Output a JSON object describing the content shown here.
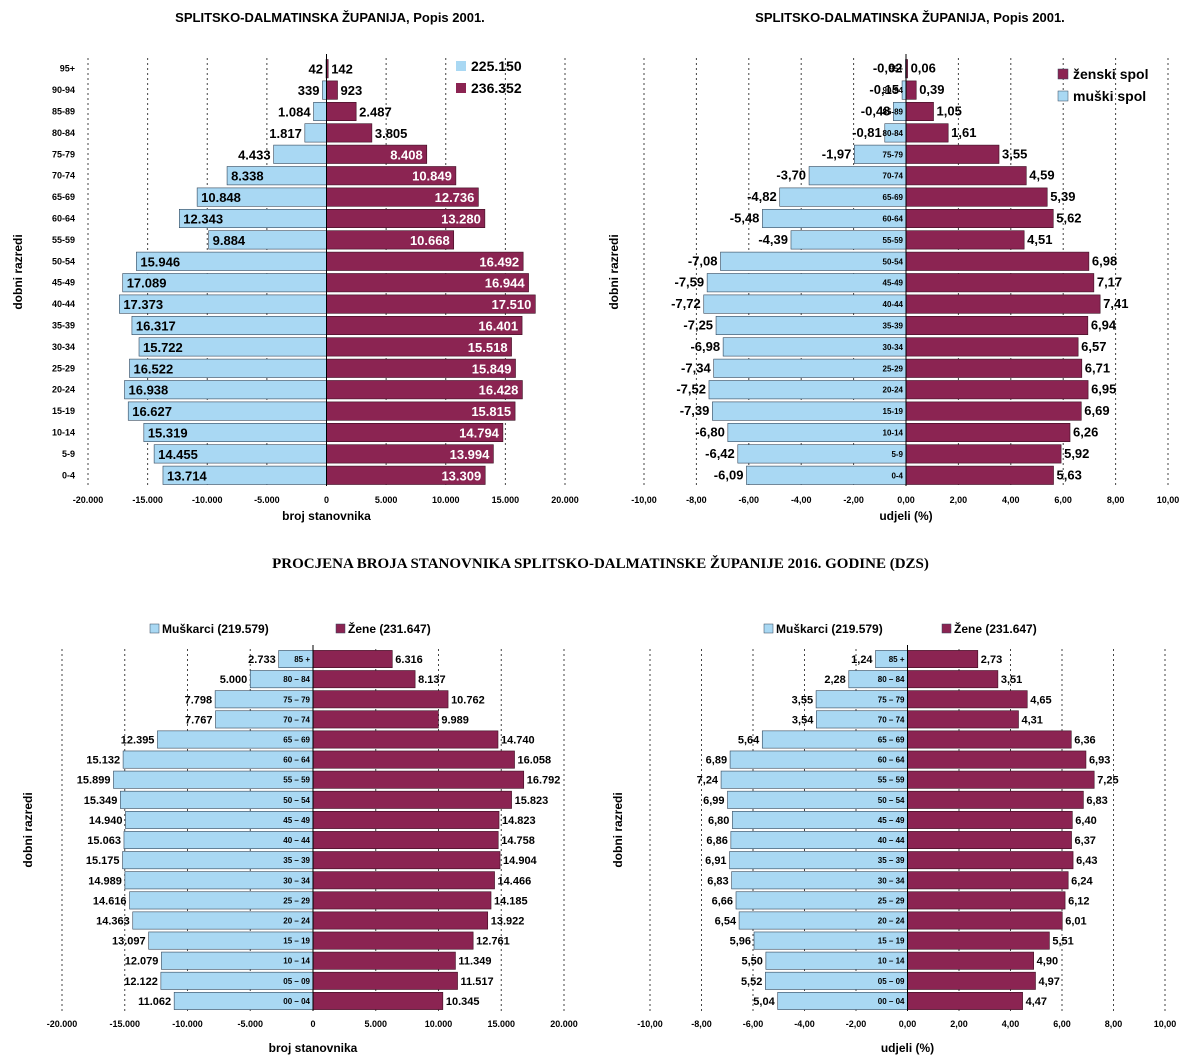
{
  "section_title": "PROCJENA BROJA STANOVNIKA SPLITSKO-DALMATINSKE ŽUPANIJE  2016. GODINE (DZS)",
  "colors": {
    "male": "#a9d8f3",
    "female": "#8b2452"
  },
  "chart_data": [
    {
      "type": "bar",
      "orientation": "horizontal",
      "title": "SPLITSKO-DALMATINSKA ŽUPANIJA, Popis 2001.",
      "xlabel": "broj stanovnika",
      "ylabel": "dobni razredi",
      "xlim": [
        -20000,
        20000
      ],
      "x_ticks": [
        "-20.000",
        "-15.000",
        "-10.000",
        "-5.000",
        "0",
        "5.000",
        "10.000",
        "15.000",
        "20.000"
      ],
      "x_tick_values": [
        -20000,
        -15000,
        -10000,
        -5000,
        0,
        5000,
        10000,
        15000,
        20000
      ],
      "legend": {
        "position": "top-right",
        "entries": [
          "225.150",
          "236.352"
        ]
      },
      "grid": true,
      "categories": [
        "95+",
        "90-94",
        "85-89",
        "80-84",
        "75-79",
        "70-74",
        "65-69",
        "60-64",
        "55-59",
        "50-54",
        "45-49",
        "40-44",
        "35-39",
        "30-34",
        "25-29",
        "20-24",
        "15-19",
        "10-14",
        "5-9",
        "0-4"
      ],
      "series": [
        {
          "values": [
            -42,
            -339,
            -1084,
            -1817,
            -4433,
            -8338,
            -10848,
            -12343,
            -9884,
            -15946,
            -17089,
            -17373,
            -16317,
            -15722,
            -16522,
            -16938,
            -16627,
            -15319,
            -14455,
            -13714
          ],
          "labels": [
            "42",
            "339",
            "1.084",
            "1.817",
            "4.433",
            "8.338",
            "10.848",
            "12.343",
            "9.884",
            "15.946",
            "17.089",
            "17.373",
            "16.317",
            "15.722",
            "16.522",
            "16.938",
            "16.627",
            "15.319",
            "14.455",
            "13.714"
          ]
        },
        {
          "values": [
            142,
            923,
            2487,
            3805,
            8408,
            10849,
            12736,
            13280,
            10668,
            16492,
            16944,
            17510,
            16401,
            15518,
            15849,
            16428,
            15815,
            14794,
            13994,
            13309
          ],
          "labels": [
            "142",
            "923",
            "2.487",
            "3.805",
            "8.408",
            "10.849",
            "12.736",
            "13.280",
            "10.668",
            "16.492",
            "16.944",
            "17.510",
            "16.401",
            "15.518",
            "15.849",
            "16.428",
            "15.815",
            "14.794",
            "13.994",
            "13.309"
          ]
        }
      ]
    },
    {
      "type": "bar",
      "orientation": "horizontal",
      "title": "SPLITSKO-DALMATINSKA ŽUPANIJA, Popis 2001.",
      "xlabel": "udjeli (%)",
      "ylabel": "dobni razredi",
      "xlim": [
        -10,
        10
      ],
      "x_ticks": [
        "-10,00",
        "-8,00",
        "-6,00",
        "-4,00",
        "-2,00",
        "0,00",
        "2,00",
        "4,00",
        "6,00",
        "8,00",
        "10,00"
      ],
      "x_tick_values": [
        -10,
        -8,
        -6,
        -4,
        -2,
        0,
        2,
        4,
        6,
        8,
        10
      ],
      "legend": {
        "position": "top-right",
        "entries": [
          "ženski spol",
          "muški spol"
        ]
      },
      "grid": true,
      "categories": [
        "95+",
        "90-94",
        "85-89",
        "80-84",
        "75-79",
        "70-74",
        "65-69",
        "60-64",
        "55-59",
        "50-54",
        "45-49",
        "40-44",
        "35-39",
        "30-34",
        "25-29",
        "20-24",
        "15-19",
        "10-14",
        "5-9",
        "0-4"
      ],
      "series": [
        {
          "name": "muški spol",
          "values": [
            -0.02,
            -0.15,
            -0.48,
            -0.81,
            -1.97,
            -3.7,
            -4.82,
            -5.48,
            -4.39,
            -7.08,
            -7.59,
            -7.72,
            -7.25,
            -6.98,
            -7.34,
            -7.52,
            -7.39,
            -6.8,
            -6.42,
            -6.09
          ],
          "labels": [
            "-0,02",
            "-0,15",
            "-0,48",
            "-0,81",
            "-1,97",
            "-3,70",
            "-4,82",
            "-5,48",
            "-4,39",
            "-7,08",
            "-7,59",
            "-7,72",
            "-7,25",
            "-6,98",
            "-7,34",
            "-7,52",
            "-7,39",
            "-6,80",
            "-6,42",
            "-6,09"
          ]
        },
        {
          "name": "ženski spol",
          "values": [
            0.06,
            0.39,
            1.05,
            1.61,
            3.55,
            4.59,
            5.39,
            5.62,
            4.51,
            6.98,
            7.17,
            7.41,
            6.94,
            6.57,
            6.71,
            6.95,
            6.69,
            6.26,
            5.92,
            5.63
          ],
          "labels": [
            "0,06",
            "0,39",
            "1,05",
            "1,61",
            "3,55",
            "4,59",
            "5,39",
            "5,62",
            "4,51",
            "6,98",
            "7,17",
            "7,41",
            "6,94",
            "6,57",
            "6,71",
            "6,95",
            "6,69",
            "6,26",
            "5,92",
            "5,63"
          ]
        }
      ]
    },
    {
      "type": "bar",
      "orientation": "horizontal",
      "title": "",
      "xlabel": "broj stanovnika",
      "ylabel": "dobni razredi",
      "xlim": [
        -20000,
        20000
      ],
      "x_ticks": [
        "-20.000",
        "-15.000",
        "-10.000",
        "-5.000",
        "0",
        "5.000",
        "10.000",
        "15.000",
        "20.000"
      ],
      "x_tick_values": [
        -20000,
        -15000,
        -10000,
        -5000,
        0,
        5000,
        10000,
        15000,
        20000
      ],
      "legend": {
        "position": "top",
        "entries": [
          "Muškarci (219.579)",
          "Žene (231.647)"
        ]
      },
      "grid": true,
      "categories": [
        "85 +",
        "80 – 84",
        "75 – 79",
        "70 – 74",
        "65 – 69",
        "60 – 64",
        "55 – 59",
        "50 – 54",
        "45 – 49",
        "40 – 44",
        "35 – 39",
        "30 – 34",
        "25 – 29",
        "20 – 24",
        "15 – 19",
        "10 – 14",
        "05 – 09",
        "00 – 04"
      ],
      "series": [
        {
          "name": "Muškarci (219.579)",
          "values": [
            -2733,
            -5000,
            -7798,
            -7767,
            -12395,
            -15132,
            -15899,
            -15349,
            -14940,
            -15063,
            -15175,
            -14989,
            -14616,
            -14363,
            -13097,
            -12079,
            -12122,
            -11062
          ],
          "labels": [
            "2.733",
            "5.000",
            "7.798",
            "7.767",
            "12.395",
            "15.132",
            "15.899",
            "15.349",
            "14.940",
            "15.063",
            "15.175",
            "14.989",
            "14.616",
            "14.363",
            "13.097",
            "12.079",
            "12.122",
            "11.062"
          ]
        },
        {
          "name": "Žene (231.647)",
          "values": [
            6316,
            8137,
            10762,
            9989,
            14740,
            16058,
            16792,
            15823,
            14823,
            14758,
            14904,
            14466,
            14185,
            13922,
            12761,
            11349,
            11517,
            10345
          ],
          "labels": [
            "6.316",
            "8.137",
            "10.762",
            "9.989",
            "14.740",
            "16.058",
            "16.792",
            "15.823",
            "14.823",
            "14.758",
            "14.904",
            "14.466",
            "14.185",
            "13.922",
            "12.761",
            "11.349",
            "11.517",
            "10.345"
          ]
        }
      ]
    },
    {
      "type": "bar",
      "orientation": "horizontal",
      "title": "",
      "xlabel": "udjeli (%)",
      "ylabel": "dobni razredi",
      "xlim": [
        -10,
        10
      ],
      "x_ticks": [
        "-10,00",
        "-8,00",
        "-6,00",
        "-4,00",
        "-2,00",
        "0,00",
        "2,00",
        "4,00",
        "6,00",
        "8,00",
        "10,00"
      ],
      "x_tick_values": [
        -10,
        -8,
        -6,
        -4,
        -2,
        0,
        2,
        4,
        6,
        8,
        10
      ],
      "legend": {
        "position": "top",
        "entries": [
          "Muškarci (219.579)",
          "Žene (231.647)"
        ]
      },
      "grid": true,
      "categories": [
        "85 +",
        "80 – 84",
        "75 – 79",
        "70 – 74",
        "65 – 69",
        "60 – 64",
        "55 – 59",
        "50 – 54",
        "45 – 49",
        "40 – 44",
        "35 – 39",
        "30 – 34",
        "25 – 29",
        "20 – 24",
        "15 – 19",
        "10 – 14",
        "05 – 09",
        "00 – 04"
      ],
      "series": [
        {
          "name": "Muškarci (219.579)",
          "values": [
            -1.24,
            -2.28,
            -3.55,
            -3.54,
            -5.64,
            -6.89,
            -7.24,
            -6.99,
            -6.8,
            -6.86,
            -6.91,
            -6.83,
            -6.66,
            -6.54,
            -5.96,
            -5.5,
            -5.52,
            -5.04
          ],
          "labels": [
            "1,24",
            "2,28",
            "3,55",
            "3,54",
            "5,64",
            "6,89",
            "7,24",
            "6,99",
            "6,80",
            "6,86",
            "6,91",
            "6,83",
            "6,66",
            "6,54",
            "5,96",
            "5,50",
            "5,52",
            "5,04"
          ]
        },
        {
          "name": "Žene (231.647)",
          "values": [
            2.73,
            3.51,
            4.65,
            4.31,
            6.36,
            6.93,
            7.25,
            6.83,
            6.4,
            6.37,
            6.43,
            6.24,
            6.12,
            6.01,
            5.51,
            4.9,
            4.97,
            4.47
          ],
          "labels": [
            "2,73",
            "3,51",
            "4,65",
            "4,31",
            "6,36",
            "6,93",
            "7,25",
            "6,83",
            "6,40",
            "6,37",
            "6,43",
            "6,24",
            "6,12",
            "6,01",
            "5,51",
            "4,90",
            "4,97",
            "4,47"
          ]
        }
      ]
    }
  ]
}
